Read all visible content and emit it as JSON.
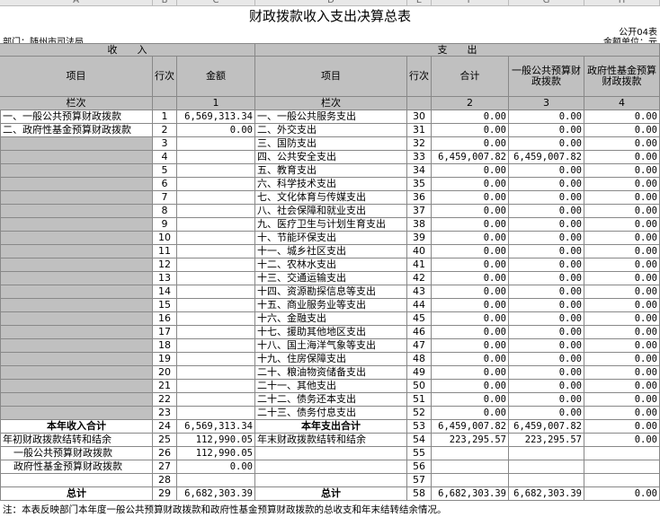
{
  "column_letters": [
    "A",
    "B",
    "C",
    "D",
    "E",
    "F",
    "G",
    "H"
  ],
  "title": "财政拨款收入支出决算总表",
  "form_no": "公开04表",
  "department": "部门：随州市司法局",
  "unit": "金额单位：元",
  "sections": {
    "income": "收　　入",
    "expense": "支　　出"
  },
  "headers": [
    "项目",
    "行次",
    "金额",
    "项目",
    "行次",
    "合计",
    "一般公共预算财政拨款",
    "政府性基金预算财政拨款"
  ],
  "column_numbers": [
    "栏次",
    null,
    1,
    "栏次",
    null,
    2,
    3,
    4
  ],
  "rows": [
    [
      "一、一般公共预算财政拨款",
      1,
      "6,569,313.34",
      "一、一般公共服务支出",
      30,
      "0.00",
      "0.00",
      "0.00"
    ],
    [
      "二、政府性基金预算财政拨款",
      2,
      "0.00",
      "二、外交支出",
      31,
      "0.00",
      "0.00",
      "0.00"
    ],
    [
      null,
      3,
      null,
      "三、国防支出",
      32,
      "0.00",
      "0.00",
      "0.00"
    ],
    [
      null,
      4,
      null,
      "四、公共安全支出",
      33,
      "6,459,007.82",
      "6,459,007.82",
      "0.00"
    ],
    [
      null,
      5,
      null,
      "五、教育支出",
      34,
      "0.00",
      "0.00",
      "0.00"
    ],
    [
      null,
      6,
      null,
      "六、科学技术支出",
      35,
      "0.00",
      "0.00",
      "0.00"
    ],
    [
      null,
      7,
      null,
      "七、文化体育与传媒支出",
      36,
      "0.00",
      "0.00",
      "0.00"
    ],
    [
      null,
      8,
      null,
      "八、社会保障和就业支出",
      37,
      "0.00",
      "0.00",
      "0.00"
    ],
    [
      null,
      9,
      null,
      "九、医疗卫生与计划生育支出",
      38,
      "0.00",
      "0.00",
      "0.00"
    ],
    [
      null,
      10,
      null,
      "十、节能环保支出",
      39,
      "0.00",
      "0.00",
      "0.00"
    ],
    [
      null,
      11,
      null,
      "十一、城乡社区支出",
      40,
      "0.00",
      "0.00",
      "0.00"
    ],
    [
      null,
      12,
      null,
      "十二、农林水支出",
      41,
      "0.00",
      "0.00",
      "0.00"
    ],
    [
      null,
      13,
      null,
      "十三、交通运输支出",
      42,
      "0.00",
      "0.00",
      "0.00"
    ],
    [
      null,
      14,
      null,
      "十四、资源勘探信息等支出",
      43,
      "0.00",
      "0.00",
      "0.00"
    ],
    [
      null,
      15,
      null,
      "十五、商业服务业等支出",
      44,
      "0.00",
      "0.00",
      "0.00"
    ],
    [
      null,
      16,
      null,
      "十六、金融支出",
      45,
      "0.00",
      "0.00",
      "0.00"
    ],
    [
      null,
      17,
      null,
      "十七、援助其他地区支出",
      46,
      "0.00",
      "0.00",
      "0.00"
    ],
    [
      null,
      18,
      null,
      "十八、国土海洋气象等支出",
      47,
      "0.00",
      "0.00",
      "0.00"
    ],
    [
      null,
      19,
      null,
      "十九、住房保障支出",
      48,
      "0.00",
      "0.00",
      "0.00"
    ],
    [
      null,
      20,
      null,
      "二十、粮油物资储备支出",
      49,
      "0.00",
      "0.00",
      "0.00"
    ],
    [
      null,
      21,
      null,
      "二十一、其他支出",
      50,
      "0.00",
      "0.00",
      "0.00"
    ],
    [
      null,
      22,
      null,
      "二十二、债务还本支出",
      51,
      "0.00",
      "0.00",
      "0.00"
    ],
    [
      null,
      23,
      null,
      "二十三、债务付息支出",
      52,
      "0.00",
      "0.00",
      "0.00"
    ],
    [
      "本年收入合计",
      24,
      "6,569,313.34",
      "本年支出合计",
      53,
      "6,459,007.82",
      "6,459,007.82",
      "0.00"
    ],
    [
      "年初财政拨款结转和结余",
      25,
      "112,990.05",
      "年末财政拨款结转和结余",
      54,
      "223,295.57",
      "223,295.57",
      "0.00"
    ],
    [
      "一般公共预算财政拨款",
      26,
      "112,990.05",
      null,
      55,
      null,
      null,
      null
    ],
    [
      "政府性基金预算财政拨款",
      27,
      "0.00",
      null,
      56,
      null,
      null,
      null
    ],
    [
      null,
      28,
      null,
      null,
      57,
      null,
      null,
      null
    ],
    [
      "总计",
      29,
      "6,682,303.39",
      "总计",
      58,
      "6,682,303.39",
      "6,682,303.39",
      "0.00"
    ]
  ],
  "note": "注：本表反映部门本年度一般公共预算财政拨款和政府性基金预算财政拨款的总收支和年末结转结余情况。"
}
